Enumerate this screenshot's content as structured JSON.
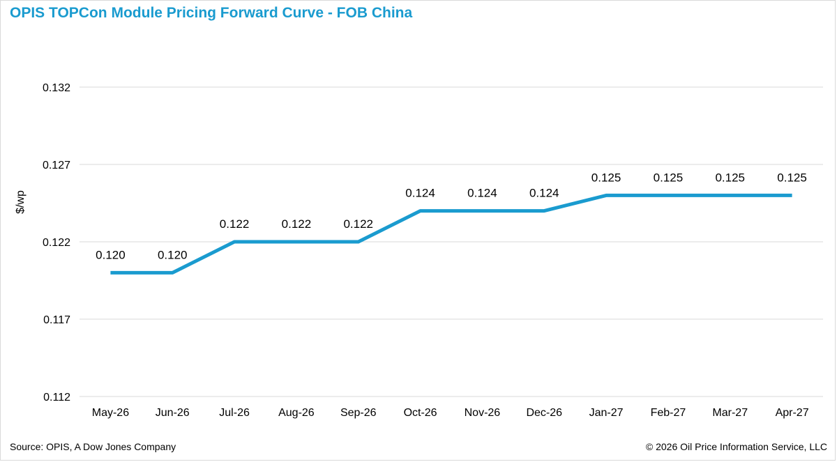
{
  "header": {
    "title": "OPIS TOPCon Module Pricing Forward Curve - FOB China"
  },
  "footer": {
    "source": "Source: OPIS, A Dow Jones Company",
    "copyright": "© 2026 Oil Price Information Service, LLC"
  },
  "colors": {
    "title": "#1a9bcf",
    "series": "#1a9bcf",
    "grid": "#d9d9d9"
  },
  "chart_data": {
    "type": "line",
    "title": "OPIS TOPCon Module Pricing Forward Curve - FOB China",
    "xlabel": "",
    "ylabel": "$/wp",
    "ylim": [
      0.112,
      0.132
    ],
    "yticks": [
      "0.112",
      "0.117",
      "0.122",
      "0.127",
      "0.132"
    ],
    "ytick_values": [
      0.112,
      0.117,
      0.122,
      0.127,
      0.132
    ],
    "grid": true,
    "legend": "none",
    "categories": [
      "May-26",
      "Jun-26",
      "Jul-26",
      "Aug-26",
      "Sep-26",
      "Oct-26",
      "Nov-26",
      "Dec-26",
      "Jan-27",
      "Feb-27",
      "Mar-27",
      "Apr-27"
    ],
    "series": [
      {
        "values": [
          0.12,
          0.12,
          0.122,
          0.122,
          0.122,
          0.124,
          0.124,
          0.124,
          0.125,
          0.125,
          0.125,
          0.125
        ],
        "labels": [
          "0.120",
          "0.120",
          "0.122",
          "0.122",
          "0.122",
          "0.124",
          "0.124",
          "0.124",
          "0.125",
          "0.125",
          "0.125",
          "0.125"
        ]
      }
    ]
  }
}
